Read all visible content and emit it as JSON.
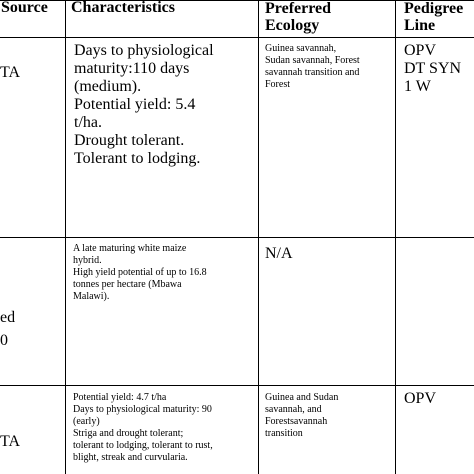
{
  "table": {
    "headers": {
      "source": "Source",
      "characteristics": "Characteristics",
      "ecology_line1": "Preferred",
      "ecology_line2": "Ecology",
      "pedigree_line1": "Pedigree",
      "pedigree_line2": "Line"
    },
    "rows": [
      {
        "source_line1": "TA",
        "characteristics": [
          "Days to physiological",
          "maturity:110 days",
          "(medium).",
          "Potential yield: 5.4",
          "t/ha.",
          "Drought tolerant.",
          "Tolerant to lodging."
        ],
        "ecology": [
          "Guinea savannah,",
          "Sudan savannah, Forest",
          "savannah transition and",
          "Forest"
        ],
        "pedigree": [
          "OPV",
          "DT SYN",
          "1 W"
        ]
      },
      {
        "source_line1": "ed",
        "source_line2": "0",
        "characteristics": [
          "A late maturing white maize",
          "hybrid.",
          "High yield potential of up to 16.8",
          "tonnes per hectare (Mbawa",
          "Malawi)."
        ],
        "ecology": [
          "N/A"
        ],
        "pedigree": []
      },
      {
        "source_line1": "TA",
        "characteristics": [
          "Potential yield: 4.7 t/ha",
          "Days to physiological maturity: 90",
          "(early)",
          "Striga and drought tolerant;",
          "tolerant to lodging, tolerant to rust,",
          "blight, streak and curvularia."
        ],
        "ecology": [
          "Guinea and Sudan",
          "savannah, and",
          "Forestsavannah",
          "transition"
        ],
        "pedigree": [
          "OPV"
        ]
      }
    ]
  }
}
